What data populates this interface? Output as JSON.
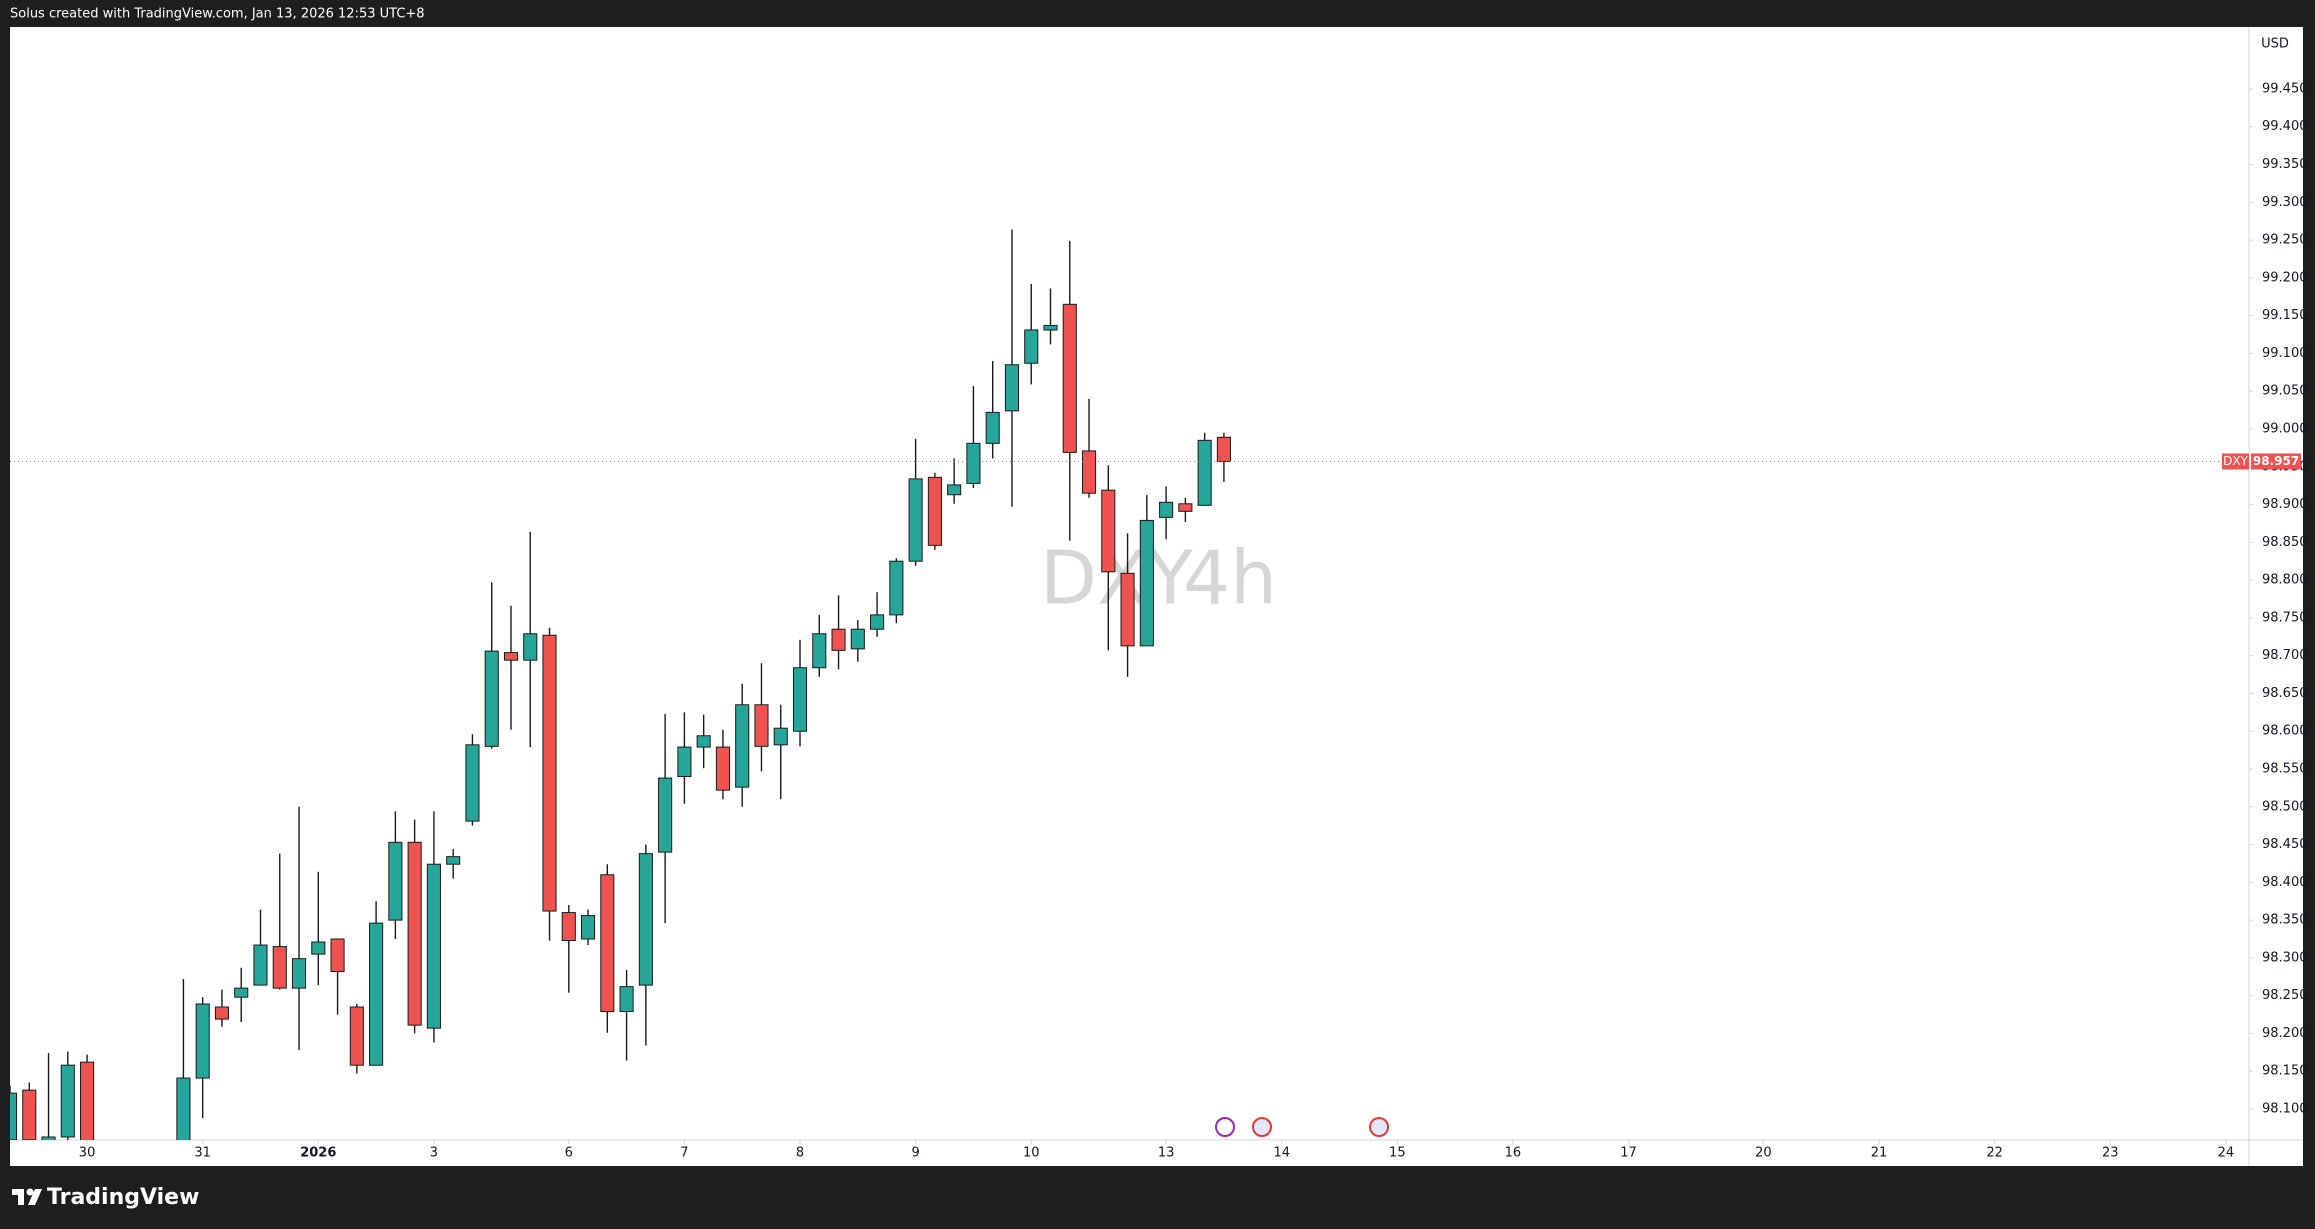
{
  "header": "Solus created with TradingView.com, Jan 13, 2026 12:53 UTC+8",
  "footer": {
    "brand": "TradingView"
  },
  "chart_data": {
    "type": "candlestick",
    "currency": "USD",
    "watermark": {
      "symbol": "DXY",
      "interval": "4h"
    },
    "up_color": "#26a69a",
    "down_color": "#ef5350",
    "wick_color": "#1a1a1a",
    "x": [
      0,
      1,
      2,
      3,
      4,
      9,
      10,
      11,
      12,
      13,
      14,
      15,
      16,
      17,
      18,
      19,
      20,
      21,
      22,
      23,
      24,
      25,
      26,
      27,
      28,
      29,
      30,
      31,
      32,
      33,
      34,
      35,
      36,
      37,
      38,
      39,
      40,
      41,
      42,
      43,
      44,
      45,
      46,
      47,
      48,
      49,
      50,
      51,
      52,
      53,
      54,
      55,
      56,
      57,
      58,
      59,
      60,
      61,
      62,
      63
    ],
    "open": [
      98.059,
      98.125,
      98.055,
      98.063,
      98.162,
      98.04,
      98.141,
      98.235,
      98.248,
      98.264,
      98.315,
      98.26,
      98.305,
      98.325,
      98.235,
      98.158,
      98.35,
      98.453,
      98.207,
      98.424,
      98.481,
      98.58,
      98.704,
      98.694,
      98.727,
      98.36,
      98.325,
      98.41,
      98.229,
      98.264,
      98.44,
      98.54,
      98.579,
      98.579,
      98.526,
      98.635,
      98.582,
      98.6,
      98.684,
      98.735,
      98.709,
      98.735,
      98.754,
      98.825,
      98.936,
      98.913,
      98.928,
      98.981,
      99.024,
      99.087,
      99.131,
      99.165,
      98.971,
      98.919,
      98.809,
      98.713,
      98.883,
      98.901,
      98.899,
      98.989
    ],
    "high": [
      98.131,
      98.135,
      98.174,
      98.176,
      98.172,
      98.272,
      98.248,
      98.258,
      98.287,
      98.364,
      98.438,
      98.5,
      98.414,
      98.325,
      98.239,
      98.375,
      98.494,
      98.483,
      98.494,
      98.444,
      98.596,
      98.797,
      98.766,
      98.864,
      98.737,
      98.37,
      98.364,
      98.424,
      98.284,
      98.45,
      98.623,
      98.625,
      98.622,
      98.602,
      98.663,
      98.69,
      98.635,
      98.721,
      98.754,
      98.78,
      98.747,
      98.784,
      98.829,
      98.987,
      98.942,
      98.961,
      99.057,
      99.09,
      99.264,
      99.192,
      99.186,
      99.249,
      99.04,
      98.952,
      98.862,
      98.913,
      98.924,
      98.909,
      98.995,
      98.995
    ],
    "low": [
      98.05,
      98.05,
      98.05,
      98.05,
      98.04,
      98.03,
      98.088,
      98.209,
      98.215,
      98.264,
      98.258,
      98.178,
      98.264,
      98.225,
      98.147,
      98.158,
      98.325,
      98.2,
      98.188,
      98.405,
      98.475,
      98.577,
      98.602,
      98.579,
      98.323,
      98.254,
      98.317,
      98.201,
      98.164,
      98.184,
      98.346,
      98.504,
      98.551,
      98.51,
      98.5,
      98.547,
      98.51,
      98.58,
      98.672,
      98.682,
      98.692,
      98.725,
      98.743,
      98.819,
      98.84,
      98.901,
      98.922,
      98.961,
      98.897,
      99.059,
      99.112,
      98.852,
      98.909,
      98.707,
      98.672,
      98.713,
      98.854,
      98.877,
      98.899,
      98.93
    ],
    "close": [
      98.121,
      98.059,
      98.063,
      98.158,
      98.05,
      98.141,
      98.239,
      98.219,
      98.26,
      98.317,
      98.26,
      98.299,
      98.321,
      98.282,
      98.158,
      98.346,
      98.453,
      98.211,
      98.424,
      98.434,
      98.582,
      98.706,
      98.694,
      98.729,
      98.362,
      98.323,
      98.356,
      98.229,
      98.262,
      98.438,
      98.538,
      98.579,
      98.594,
      98.522,
      98.635,
      98.58,
      98.604,
      98.684,
      98.729,
      98.707,
      98.735,
      98.754,
      98.825,
      98.934,
      98.846,
      98.926,
      98.981,
      99.022,
      99.085,
      99.131,
      99.137,
      98.969,
      98.915,
      98.811,
      98.713,
      98.879,
      98.903,
      98.891,
      98.985,
      98.957
    ],
    "last_price": {
      "symbol": "DXY",
      "value": 98.957,
      "color": "#ef5350"
    },
    "xlim": [
      0,
      116.2
    ],
    "ylim": [
      98.059,
      99.532
    ],
    "xticks": [
      {
        "value": 4,
        "label": "30"
      },
      {
        "value": 10,
        "label": "31"
      },
      {
        "value": 16,
        "label": "2026"
      },
      {
        "value": 22,
        "label": "3"
      },
      {
        "value": 29,
        "label": "6"
      },
      {
        "value": 35,
        "label": "7"
      },
      {
        "value": 41,
        "label": "8"
      },
      {
        "value": 47,
        "label": "9"
      },
      {
        "value": 53,
        "label": "10"
      },
      {
        "value": 60,
        "label": "13"
      },
      {
        "value": 66,
        "label": "14"
      },
      {
        "value": 72,
        "label": "15"
      },
      {
        "value": 78,
        "label": "16"
      },
      {
        "value": 84,
        "label": "17"
      },
      {
        "value": 91,
        "label": "20"
      },
      {
        "value": 97,
        "label": "21"
      },
      {
        "value": 103,
        "label": "22"
      },
      {
        "value": 109,
        "label": "23"
      },
      {
        "value": 115,
        "label": "24"
      }
    ],
    "yticks": [
      {
        "value": 98.1,
        "label": "98.100"
      },
      {
        "value": 98.15,
        "label": "98.150"
      },
      {
        "value": 98.2,
        "label": "98.200"
      },
      {
        "value": 98.25,
        "label": "98.250"
      },
      {
        "value": 98.3,
        "label": "98.300"
      },
      {
        "value": 98.35,
        "label": "98.350"
      },
      {
        "value": 98.4,
        "label": "98.400"
      },
      {
        "value": 98.45,
        "label": "98.450"
      },
      {
        "value": 98.5,
        "label": "98.500"
      },
      {
        "value": 98.55,
        "label": "98.550"
      },
      {
        "value": 98.6,
        "label": "98.600"
      },
      {
        "value": 98.65,
        "label": "98.650"
      },
      {
        "value": 98.7,
        "label": "98.700"
      },
      {
        "value": 98.75,
        "label": "98.750"
      },
      {
        "value": 98.8,
        "label": "98.800"
      },
      {
        "value": 98.85,
        "label": "98.850"
      },
      {
        "value": 98.9,
        "label": "98.900"
      },
      {
        "value": 98.95,
        "label": "98.950"
      },
      {
        "value": 99.0,
        "label": "99.000"
      },
      {
        "value": 99.05,
        "label": "99.050"
      },
      {
        "value": 99.1,
        "label": "99.100"
      },
      {
        "value": 99.15,
        "label": "99.150"
      },
      {
        "value": 99.2,
        "label": "99.200"
      },
      {
        "value": 99.25,
        "label": "99.250"
      },
      {
        "value": 99.3,
        "label": "99.300"
      },
      {
        "value": 99.35,
        "label": "99.350"
      },
      {
        "value": 99.4,
        "label": "99.400"
      },
      {
        "value": 99.45,
        "label": "99.450"
      }
    ],
    "grid": false
  }
}
